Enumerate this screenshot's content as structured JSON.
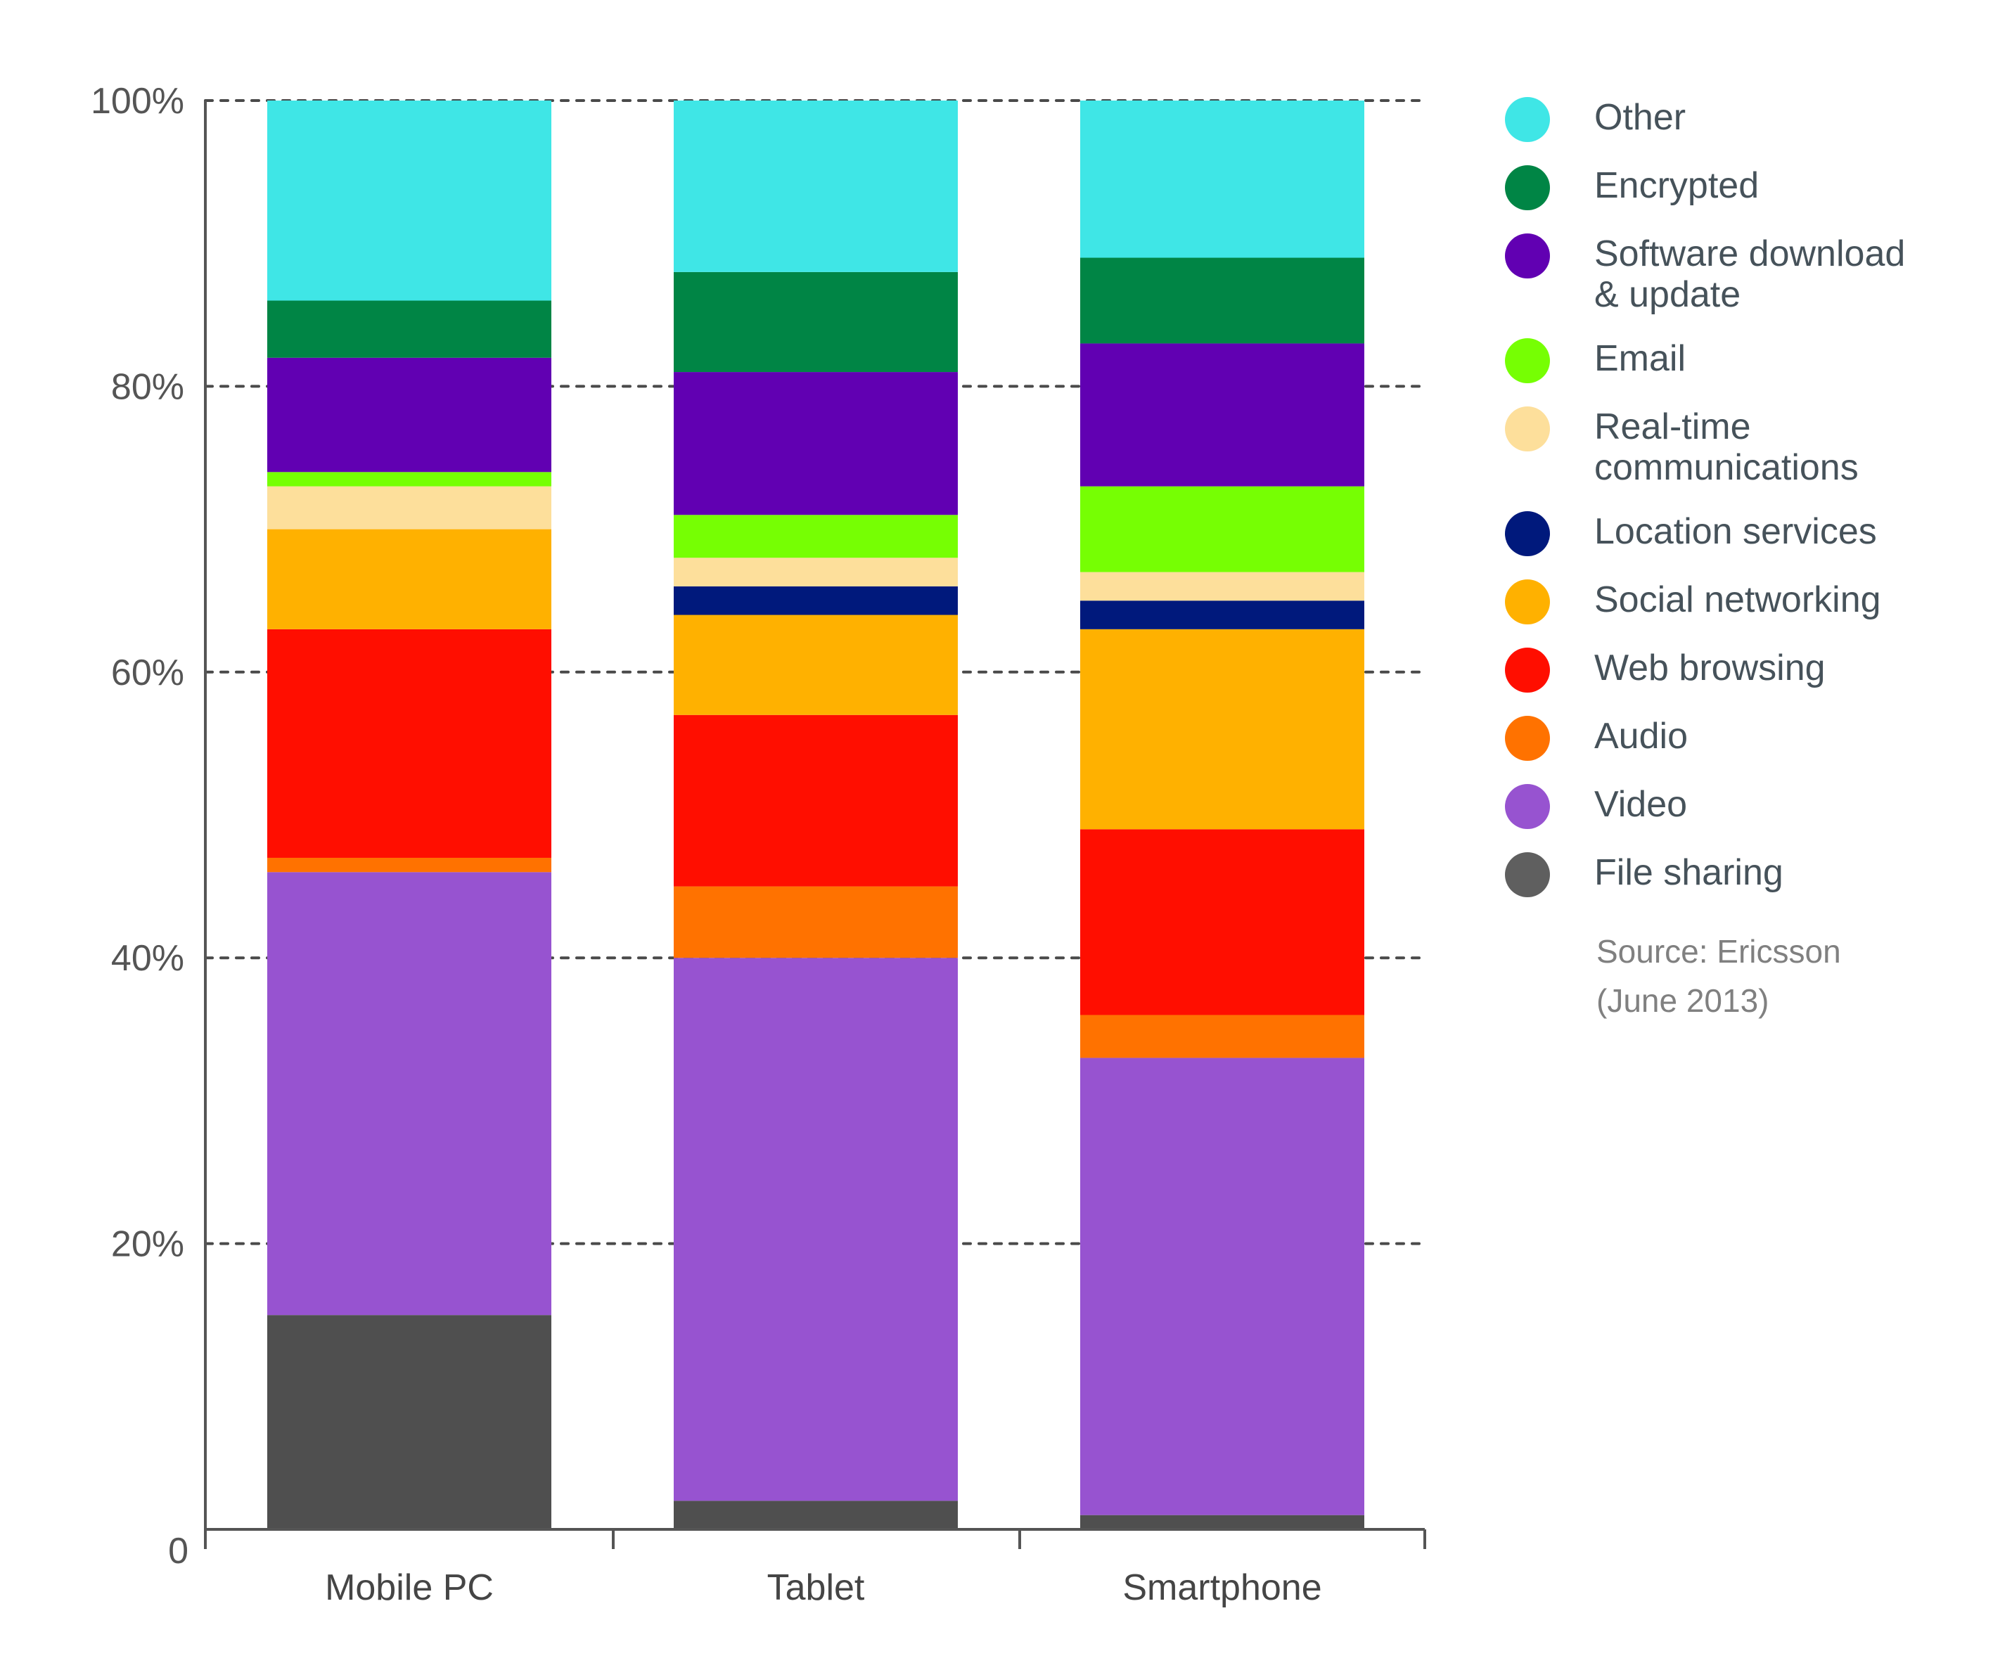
{
  "chart_data": {
    "type": "bar",
    "stacked": true,
    "title": "",
    "xlabel": "",
    "ylabel": "",
    "ylim": [
      0,
      100
    ],
    "yticks": [
      {
        "value": 0,
        "label": "0"
      },
      {
        "value": 20,
        "label": "20%"
      },
      {
        "value": 40,
        "label": "40%"
      },
      {
        "value": 60,
        "label": "60%"
      },
      {
        "value": 80,
        "label": "80%"
      },
      {
        "value": 100,
        "label": "100%"
      }
    ],
    "grid": "horizontal dashed",
    "legend_position": "right",
    "categories": [
      "Mobile PC",
      "Tablet",
      "Smartphone"
    ],
    "series": [
      {
        "name": "File sharing",
        "color": "#4f4f4f",
        "values": [
          15,
          2,
          1
        ]
      },
      {
        "name": "Video",
        "color": "#9753d0",
        "values": [
          31,
          38,
          32
        ]
      },
      {
        "name": "Audio",
        "color": "#ff7200",
        "values": [
          1,
          5,
          3
        ]
      },
      {
        "name": "Web browsing",
        "color": "#ff0e00",
        "values": [
          16,
          12,
          13
        ]
      },
      {
        "name": "Social networking",
        "color": "#ffb100",
        "values": [
          7,
          7,
          14
        ]
      },
      {
        "name": "Location services",
        "color": "#00197c",
        "values": [
          0,
          2,
          2
        ]
      },
      {
        "name": "Real-time communications",
        "color": "#fddf9b",
        "values": [
          3,
          2,
          2
        ]
      },
      {
        "name": "Email",
        "color": "#76ff03",
        "values": [
          1,
          3,
          6
        ]
      },
      {
        "name": "Software download & update",
        "color": "#6100b2",
        "values": [
          8,
          10,
          10
        ]
      },
      {
        "name": "Encrypted",
        "color": "#008545",
        "values": [
          4,
          7,
          6
        ]
      },
      {
        "name": "Other",
        "color": "#3fe6e6",
        "values": [
          14,
          12,
          11
        ]
      }
    ]
  },
  "legend": {
    "items": [
      {
        "label_lines": [
          "Other"
        ],
        "color": "#3fe6e6"
      },
      {
        "label_lines": [
          "Encrypted"
        ],
        "color": "#008545"
      },
      {
        "label_lines": [
          "Software download",
          "& update"
        ],
        "color": "#6100b2"
      },
      {
        "label_lines": [
          "Email"
        ],
        "color": "#76ff03"
      },
      {
        "label_lines": [
          "Real-time",
          "communications"
        ],
        "color": "#fddf9b"
      },
      {
        "label_lines": [
          "Location services"
        ],
        "color": "#00197c"
      },
      {
        "label_lines": [
          "Social networking"
        ],
        "color": "#ffb100"
      },
      {
        "label_lines": [
          "Web browsing"
        ],
        "color": "#ff0e00"
      },
      {
        "label_lines": [
          "Audio"
        ],
        "color": "#ff7200"
      },
      {
        "label_lines": [
          "Video"
        ],
        "color": "#9753d0"
      },
      {
        "label_lines": [
          "File sharing"
        ],
        "color": "#5f5f5f"
      }
    ]
  },
  "source": {
    "line1": "Source: Ericsson",
    "line2": "(June 2013)"
  }
}
